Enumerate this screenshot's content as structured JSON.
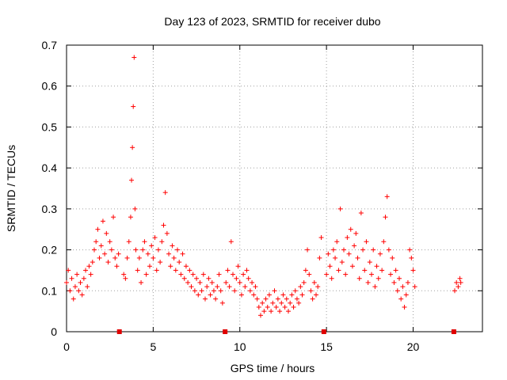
{
  "chart_data": {
    "type": "scatter",
    "title": "Day 123 of 2023, SRMTID for receiver dubo",
    "xlabel": "GPS time / hours",
    "ylabel": "SRMTID / TECUs",
    "xlim": [
      0,
      24
    ],
    "ylim": [
      0,
      0.7
    ],
    "xticks": [
      0,
      5,
      10,
      15,
      20
    ],
    "xtick_labels": [
      "0",
      "5",
      "10",
      "15",
      "20"
    ],
    "yticks": [
      0,
      0.1,
      0.2,
      0.3,
      0.4,
      0.5,
      0.6,
      0.7
    ],
    "ytick_labels": [
      "0",
      "0.1",
      "0.2",
      "0.3",
      "0.4",
      "0.5",
      "0.6",
      "0.7"
    ],
    "grid": true,
    "marker": "+",
    "marker_color": "#ff0000",
    "gap_markers_x": [
      3.05,
      9.15,
      14.85,
      22.35
    ],
    "series": [
      {
        "name": "SRMTID",
        "x": [
          0.0,
          0.1,
          0.2,
          0.3,
          0.4,
          0.5,
          0.6,
          0.7,
          0.8,
          0.9,
          1.0,
          1.1,
          1.2,
          1.3,
          1.4,
          1.5,
          1.6,
          1.7,
          1.8,
          1.9,
          2.0,
          2.1,
          2.2,
          2.3,
          2.4,
          2.5,
          2.6,
          2.7,
          2.8,
          2.9,
          3.0,
          3.3,
          3.4,
          3.5,
          3.6,
          3.7,
          3.75,
          3.8,
          3.85,
          3.9,
          3.95,
          4.0,
          4.1,
          4.2,
          4.3,
          4.4,
          4.5,
          4.6,
          4.7,
          4.8,
          4.9,
          5.0,
          5.1,
          5.2,
          5.3,
          5.4,
          5.5,
          5.6,
          5.7,
          5.8,
          5.9,
          6.0,
          6.1,
          6.2,
          6.3,
          6.4,
          6.5,
          6.6,
          6.7,
          6.8,
          6.9,
          7.0,
          7.1,
          7.2,
          7.3,
          7.4,
          7.5,
          7.6,
          7.7,
          7.8,
          7.9,
          8.0,
          8.1,
          8.2,
          8.3,
          8.4,
          8.5,
          8.6,
          8.7,
          8.8,
          8.9,
          9.0,
          9.2,
          9.3,
          9.4,
          9.5,
          9.6,
          9.7,
          9.8,
          9.9,
          10.0,
          10.1,
          10.2,
          10.3,
          10.4,
          10.5,
          10.6,
          10.7,
          10.8,
          10.9,
          11.0,
          11.1,
          11.2,
          11.3,
          11.4,
          11.5,
          11.6,
          11.7,
          11.8,
          11.9,
          12.0,
          12.1,
          12.2,
          12.3,
          12.4,
          12.5,
          12.6,
          12.7,
          12.8,
          12.9,
          13.0,
          13.1,
          13.2,
          13.3,
          13.4,
          13.5,
          13.6,
          13.7,
          13.8,
          13.9,
          14.0,
          14.1,
          14.2,
          14.3,
          14.4,
          14.5,
          14.6,
          14.7,
          15.0,
          15.1,
          15.2,
          15.3,
          15.4,
          15.5,
          15.6,
          15.7,
          15.8,
          15.9,
          16.0,
          16.1,
          16.2,
          16.3,
          16.4,
          16.5,
          16.6,
          16.7,
          16.8,
          16.9,
          17.0,
          17.1,
          17.2,
          17.3,
          17.4,
          17.5,
          17.6,
          17.7,
          17.8,
          17.9,
          18.0,
          18.1,
          18.2,
          18.3,
          18.4,
          18.5,
          18.6,
          18.7,
          18.8,
          18.9,
          19.0,
          19.1,
          19.2,
          19.3,
          19.4,
          19.5,
          19.6,
          19.7,
          19.8,
          19.9,
          20.0,
          20.1,
          22.4,
          22.5,
          22.6,
          22.7,
          22.75
        ],
        "y": [
          0.12,
          0.15,
          0.1,
          0.13,
          0.08,
          0.11,
          0.14,
          0.1,
          0.12,
          0.09,
          0.13,
          0.15,
          0.11,
          0.16,
          0.14,
          0.17,
          0.2,
          0.22,
          0.25,
          0.18,
          0.21,
          0.27,
          0.19,
          0.24,
          0.17,
          0.22,
          0.2,
          0.28,
          0.18,
          0.16,
          0.19,
          0.14,
          0.13,
          0.18,
          0.22,
          0.28,
          0.37,
          0.45,
          0.55,
          0.67,
          0.3,
          0.2,
          0.15,
          0.18,
          0.12,
          0.2,
          0.22,
          0.14,
          0.19,
          0.16,
          0.21,
          0.18,
          0.23,
          0.15,
          0.2,
          0.17,
          0.22,
          0.26,
          0.34,
          0.24,
          0.19,
          0.16,
          0.21,
          0.18,
          0.15,
          0.2,
          0.17,
          0.14,
          0.19,
          0.13,
          0.16,
          0.12,
          0.15,
          0.11,
          0.14,
          0.1,
          0.13,
          0.09,
          0.12,
          0.1,
          0.14,
          0.08,
          0.11,
          0.13,
          0.09,
          0.12,
          0.1,
          0.08,
          0.11,
          0.14,
          0.1,
          0.07,
          0.12,
          0.15,
          0.11,
          0.22,
          0.14,
          0.1,
          0.13,
          0.16,
          0.12,
          0.09,
          0.14,
          0.11,
          0.15,
          0.13,
          0.1,
          0.12,
          0.09,
          0.11,
          0.08,
          0.06,
          0.04,
          0.07,
          0.05,
          0.08,
          0.06,
          0.09,
          0.05,
          0.07,
          0.1,
          0.06,
          0.08,
          0.05,
          0.07,
          0.09,
          0.06,
          0.08,
          0.05,
          0.07,
          0.09,
          0.06,
          0.1,
          0.08,
          0.07,
          0.11,
          0.09,
          0.12,
          0.15,
          0.2,
          0.14,
          0.1,
          0.08,
          0.12,
          0.09,
          0.11,
          0.18,
          0.23,
          0.14,
          0.19,
          0.16,
          0.13,
          0.2,
          0.18,
          0.22,
          0.15,
          0.3,
          0.17,
          0.2,
          0.14,
          0.23,
          0.19,
          0.25,
          0.16,
          0.21,
          0.24,
          0.18,
          0.13,
          0.29,
          0.2,
          0.15,
          0.22,
          0.12,
          0.17,
          0.14,
          0.2,
          0.11,
          0.16,
          0.13,
          0.19,
          0.15,
          0.22,
          0.28,
          0.33,
          0.2,
          0.14,
          0.18,
          0.12,
          0.15,
          0.1,
          0.13,
          0.08,
          0.11,
          0.06,
          0.09,
          0.12,
          0.2,
          0.18,
          0.15,
          0.11,
          0.1,
          0.12,
          0.11,
          0.13,
          0.12
        ],
        "color": "#ff0000"
      }
    ]
  }
}
